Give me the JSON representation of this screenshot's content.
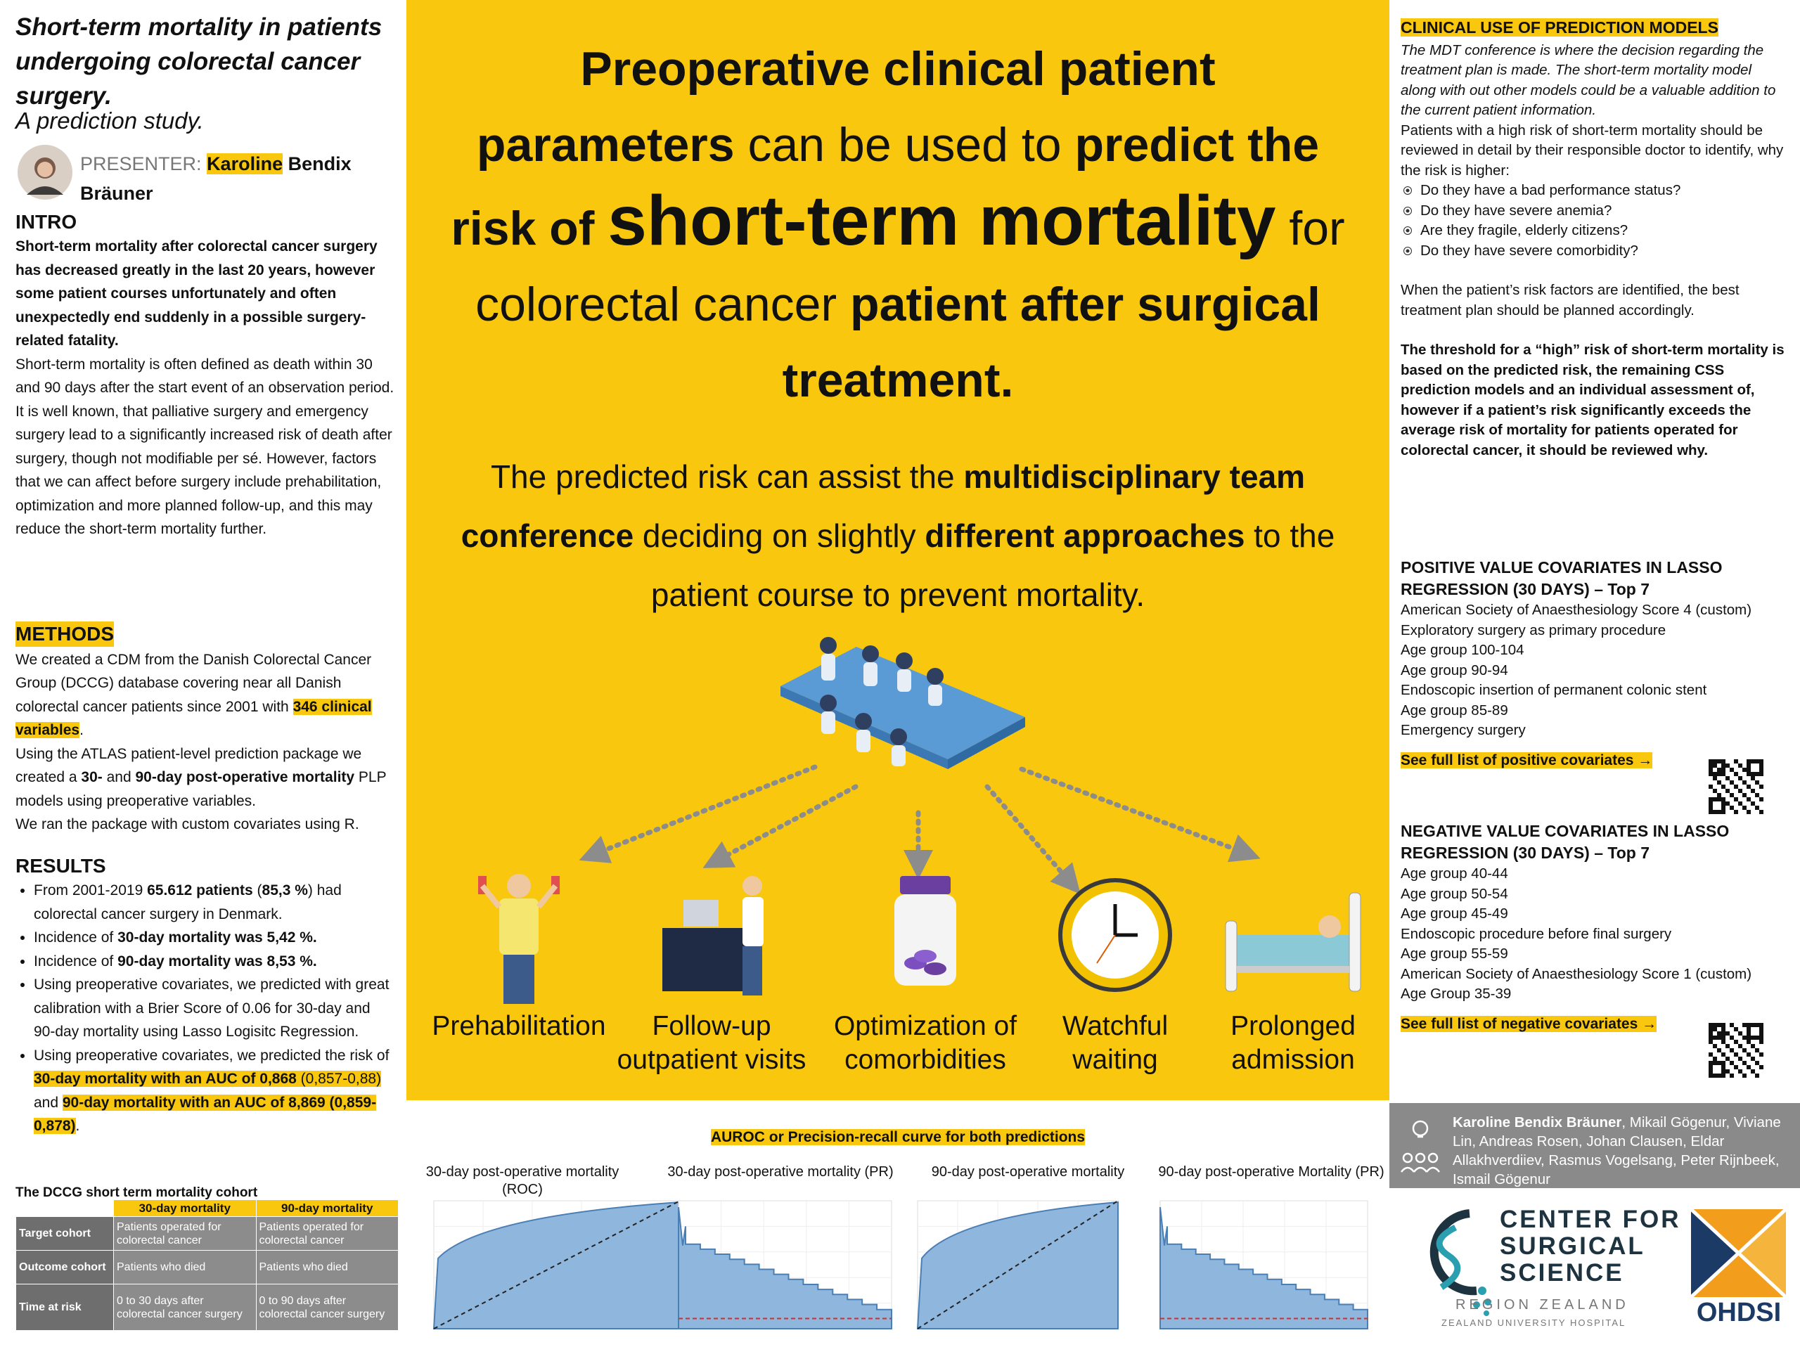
{
  "title": {
    "heading": "Short-term mortality in patients undergoing colorectal cancer surgery.",
    "subtitle": "A prediction study."
  },
  "presenter": {
    "label": "PRESENTER:",
    "first_name": "Karoline",
    "last_names": "Bendix Bräuner"
  },
  "intro": {
    "heading": "INTRO",
    "paragraphs": [
      "Short-term mortality after colorectal cancer surgery has decreased greatly in the last 20 years, however some patient courses unfortunately and often unexpectedly end suddenly in a possible surgery-related fatality.",
      "Short-term mortality is often defined as death within 30 and 90 days after the start event of an observation period.",
      "It is well known, that palliative surgery and emergency surgery lead to a significantly increased risk of death after surgery, though not modifiable per sé. However, factors that we can affect before surgery include prehabilitation, optimization and more planned follow-up, and this may reduce the short-term mortality further."
    ]
  },
  "methods": {
    "heading": "METHODS",
    "paragraphs": [
      [
        "We created a CDM from the Danish Colorectal Cancer Group (DCCG) database covering near all Danish colorectal cancer patients since 2001 with ",
        "346 clinical variables",
        "."
      ],
      [
        "Using the ATLAS patient-level prediction package we created a ",
        "30-",
        " and ",
        "90-day post-operative mortality",
        " PLP models using preoperative variables."
      ],
      [
        "We ran the package with custom covariates using R."
      ]
    ]
  },
  "results": {
    "heading": "RESULTS",
    "bullets": [
      [
        "From 2001-2019 ",
        "65.612 patients",
        " (",
        "85,3 %",
        ") had colorectal cancer surgery in Denmark."
      ],
      [
        "Incidence of ",
        "30-day mortality was 5,42 %."
      ],
      [
        "Incidence of ",
        "90-day mortality was 8,53 %."
      ],
      [
        "Using preoperative covariates, we predicted with great calibration with a Brier Score of 0.06 for 30-day and 90-day mortality using Lasso Logisitc Regression."
      ],
      [
        "Using preoperative covariates, we predicted the risk of ",
        "30-day mortality with an AUC of 0,868",
        " (0,857-0,88)",
        " and ",
        "90-day mortality with an AUC of 8,869 (0,859-0,878)",
        "."
      ]
    ]
  },
  "cohort_table": {
    "title": "The DCCG short term mortality cohort",
    "columns": [
      "30-day mortality",
      "90-day mortality"
    ],
    "rows": [
      [
        "Target cohort",
        "Patients operated for colorectal cancer",
        "Patients operated for colorectal cancer"
      ],
      [
        "Outcome cohort",
        "Patients who died",
        "Patients who died"
      ],
      [
        "Time at risk",
        "0 to 30 days after colorectal cancer surgery",
        "0 to 90 days after colorectal cancer surgery"
      ]
    ]
  },
  "headline": {
    "main": [
      "Preoperative clinical patient parameters",
      " can be used to ",
      "predict the risk of ",
      "short-term mortality",
      " for colorectal cancer ",
      "patient after surgical treatment."
    ],
    "sub": [
      "The predicted risk can assist the ",
      "multidisciplinary team conference",
      " deciding on slightly ",
      "different approaches",
      " to the patient course to prevent mortality."
    ]
  },
  "interventions": [
    "Prehabilitation",
    "Follow-up outpatient visits",
    "Optimization of comorbidities",
    "Watchful waiting",
    "Prolonged admission"
  ],
  "curves": {
    "heading": "AUROC or Precision-recall curve for both predictions",
    "titles": [
      "30-day post-operative mortality (ROC)",
      "30-day post-operative mortality (PR)",
      "90-day post-operative mortality",
      "90-day post-operative Mortality (PR)"
    ]
  },
  "clinical_use": {
    "heading": "CLINICAL USE OF PREDICTION MODELS",
    "intro": "The MDT conference is where the decision regarding the treatment plan is made. The short-term mortality model along with out other models could be a valuable addition to the current patient information.",
    "paragraph": "Patients with a high risk of short-term mortality should be reviewed in detail by their responsible doctor to identify, why the risk is higher:",
    "questions": [
      "Do they have a bad performance status?",
      "Do they have severe anemia?",
      "Are they fragile, elderly citizens?",
      "Do they have severe comorbidity?"
    ],
    "plan": "When the patient’s risk factors are identified, the best treatment plan should be planned accordingly.",
    "threshold": "The threshold for a “high” risk of short-term mortality is based on the predicted risk, the remaining CSS prediction models and an individual assessment of, however if a patient’s risk significantly exceeds the average risk of mortality for patients operated for colorectal cancer, it should be reviewed why."
  },
  "positive_covariates": {
    "heading": "POSITIVE VALUE COVARIATES IN LASSO REGRESSION (30 DAYS) – Top 7",
    "items": [
      "American Society of Anaesthesiology Score 4 (custom)",
      "Exploratory surgery as primary procedure",
      "Age group 100-104",
      "Age group 90-94",
      "Endoscopic insertion of permanent colonic stent",
      "Age group 85-89",
      "Emergency surgery"
    ],
    "link": "See full list of positive covariates →"
  },
  "negative_covariates": {
    "heading": "NEGATIVE VALUE COVARIATES IN LASSO REGRESSION (30 DAYS) – Top 7",
    "items": [
      "Age group 40-44",
      "Age group 50-54",
      "Age group 45-49",
      "Endoscopic procedure before final surgery",
      "Age group 55-59",
      "American Society of Anaesthesiology Score 1 (custom)",
      "Age Group 35-39"
    ],
    "link": "See full list of negative covariates →"
  },
  "authors": [
    "Karoline Bendix Bräuner",
    ", Mikail Gögenur, Viviane Lin, Andreas Rosen, Johan Clausen, Eldar Allakhverdiiev, Rasmus Vogelsang, Peter Rijnbeek, Ismail Gögenur"
  ],
  "logos": {
    "center": [
      "CENTER FOR",
      "SURGICAL",
      "SCIENCE"
    ],
    "region": "REGION ZEALAND",
    "hospital": "ZEALAND UNIVERSITY HOSPITAL",
    "ohdsi": "OHDSI"
  }
}
